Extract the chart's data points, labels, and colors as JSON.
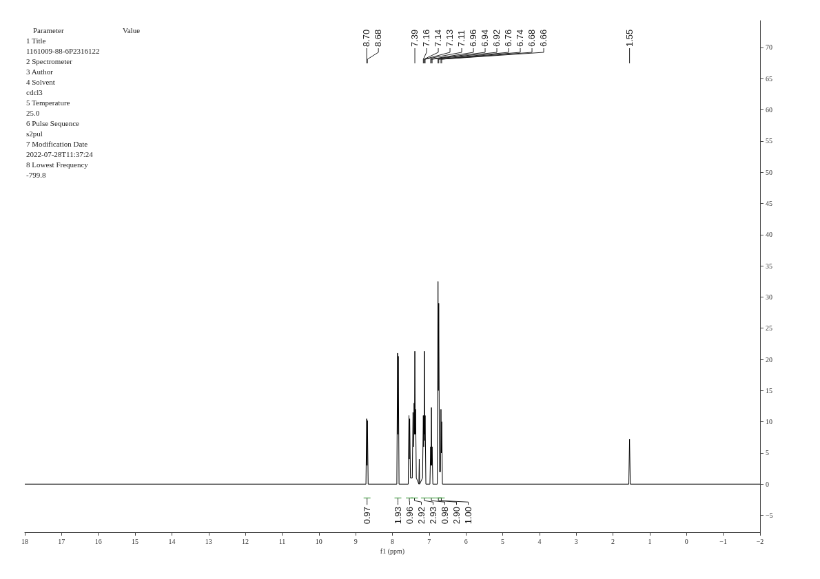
{
  "chart_data": {
    "type": "line",
    "xlabel": "f1 (ppm)",
    "x": [
      18,
      8.72,
      8.7,
      8.69,
      8.68,
      8.66,
      7.88,
      7.86,
      7.85,
      7.84,
      7.82,
      7.57,
      7.55,
      7.54,
      7.53,
      7.51,
      7.46,
      7.44,
      7.42,
      7.41,
      7.4,
      7.39,
      7.38,
      7.37,
      7.35,
      7.28,
      7.27,
      7.26,
      7.18,
      7.16,
      7.15,
      7.14,
      7.135,
      7.13,
      7.12,
      7.11,
      7.09,
      6.98,
      6.96,
      6.95,
      6.94,
      6.93,
      6.92,
      6.9,
      6.78,
      6.76,
      6.75,
      6.74,
      6.72,
      6.69,
      6.68,
      6.67,
      6.66,
      6.64,
      1.57,
      1.55,
      1.53,
      -2
    ],
    "series": [
      {
        "color": "#000000",
        "values": [
          0,
          0,
          10.5,
          3,
          10.2,
          0,
          0,
          21,
          8,
          20.5,
          0,
          0,
          11,
          4,
          10.5,
          1,
          1,
          11.5,
          6,
          13,
          8,
          21.3,
          8,
          12,
          1,
          0,
          4,
          0,
          1,
          11,
          6,
          11,
          8,
          21.3,
          7,
          11,
          0,
          0,
          6,
          3,
          12.3,
          3,
          6,
          0,
          0,
          32.5,
          15,
          29,
          2,
          2,
          12,
          5,
          10,
          0,
          0,
          7.2,
          0,
          0
        ]
      }
    ],
    "xlim": [
      18,
      -2
    ],
    "xticks": [
      18,
      17,
      16,
      15,
      14,
      13,
      12,
      11,
      10,
      9,
      8,
      7,
      6,
      5,
      4,
      3,
      2,
      1,
      0,
      {
        "value": -1,
        "label": "−1"
      },
      {
        "value": -2,
        "label": "−2"
      }
    ],
    "ylim": [
      -7.7,
      74.3
    ],
    "yticks": [
      {
        "value": -5,
        "label": "−5"
      },
      0,
      5,
      10,
      15,
      20,
      25,
      30,
      35,
      40,
      45,
      50,
      55,
      60,
      65,
      70
    ],
    "grid": false,
    "marker": "none",
    "line_style": "solid",
    "annotations": [
      "Parameter",
      "Value",
      "1 Title",
      "1161009-88-6P2316122",
      "2 Spectrometer",
      "3 Author",
      "4 Solvent",
      "cdcl3",
      "5 Temperature",
      "25.0",
      "6 Pulse Sequence",
      "s2pul",
      "7 Modification Date",
      "2022-07-28T11:37:24",
      "8 Lowest Frequency",
      "-799.8",
      {
        "text": "8.70",
        "x": 8.7
      },
      {
        "text": "8.68",
        "x": 8.68
      },
      {
        "text": "7.39",
        "x": 7.39
      },
      {
        "text": "7.16",
        "x": 7.16
      },
      {
        "text": "7.14",
        "x": 7.14
      },
      {
        "text": "7.13",
        "x": 7.13
      },
      {
        "text": "7.11",
        "x": 7.11
      },
      {
        "text": "6.96",
        "x": 6.96
      },
      {
        "text": "6.94",
        "x": 6.94
      },
      {
        "text": "6.92",
        "x": 6.92
      },
      {
        "text": "6.76",
        "x": 6.76
      },
      {
        "text": "6.74",
        "x": 6.74
      },
      {
        "text": "6.68",
        "x": 6.68
      },
      {
        "text": "6.66",
        "x": 6.66
      },
      {
        "text": "1.55",
        "x": 1.55
      },
      {
        "text": "0.97",
        "x": 8.69
      },
      {
        "text": "1.93",
        "x": 7.85
      },
      {
        "text": "0.96",
        "x": 7.54
      },
      {
        "text": "2.92",
        "x": 7.4
      },
      {
        "text": "2.93",
        "x": 7.13
      },
      {
        "text": "0.98",
        "x": 6.94
      },
      {
        "text": "2.90",
        "x": 6.75
      },
      {
        "text": "1.00",
        "x": 6.67
      }
    ]
  }
}
